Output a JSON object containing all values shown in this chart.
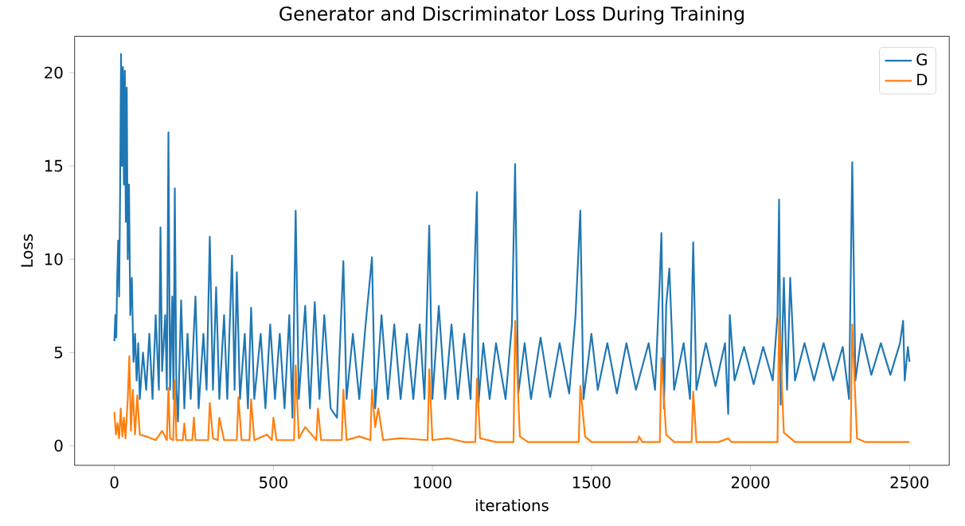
{
  "chart_data": {
    "type": "line",
    "title": "Generator and Discriminator Loss During Training",
    "xlabel": "iterations",
    "ylabel": "Loss",
    "xlim": [
      -125,
      2625
    ],
    "ylim": [
      -1.05,
      21.95
    ],
    "xticks": [
      0,
      500,
      1000,
      1500,
      2000,
      2500
    ],
    "yticks": [
      0,
      5,
      10,
      15,
      20
    ],
    "legend": "top right",
    "grid": false,
    "series": [
      {
        "name": "G",
        "color": "#1f77b4",
        "x": [
          0,
          3,
          6,
          9,
          12,
          15,
          18,
          21,
          24,
          27,
          30,
          33,
          36,
          39,
          42,
          46,
          50,
          55,
          60,
          65,
          70,
          75,
          80,
          90,
          100,
          110,
          120,
          130,
          140,
          145,
          150,
          160,
          165,
          170,
          175,
          182,
          186,
          190,
          195,
          200,
          210,
          220,
          230,
          240,
          255,
          265,
          280,
          290,
          300,
          310,
          320,
          330,
          345,
          355,
          370,
          378,
          385,
          395,
          410,
          420,
          430,
          440,
          460,
          475,
          490,
          505,
          520,
          535,
          550,
          560,
          570,
          580,
          600,
          615,
          630,
          645,
          660,
          680,
          700,
          720,
          730,
          750,
          770,
          790,
          810,
          820,
          840,
          860,
          880,
          900,
          920,
          940,
          960,
          975,
          990,
          1000,
          1020,
          1040,
          1060,
          1080,
          1100,
          1120,
          1140,
          1145,
          1160,
          1180,
          1200,
          1230,
          1250,
          1260,
          1270,
          1290,
          1310,
          1340,
          1370,
          1400,
          1430,
          1450,
          1465,
          1475,
          1500,
          1520,
          1550,
          1580,
          1610,
          1640,
          1680,
          1700,
          1715,
          1720,
          1728,
          1735,
          1745,
          1760,
          1790,
          1810,
          1820,
          1830,
          1860,
          1890,
          1920,
          1930,
          1935,
          1950,
          1980,
          2010,
          2040,
          2070,
          2085,
          2090,
          2095,
          2105,
          2115,
          2125,
          2140,
          2170,
          2200,
          2230,
          2260,
          2290,
          2310,
          2320,
          2330,
          2350,
          2380,
          2410,
          2440,
          2470,
          2480,
          2485,
          2495,
          2500
        ],
        "values": [
          5.6,
          7,
          5.8,
          9,
          11,
          8,
          13.5,
          21,
          15,
          20.3,
          14,
          20.1,
          12,
          19.2,
          10,
          14,
          7,
          9,
          4.5,
          6,
          3.5,
          5.5,
          2.5,
          5,
          3,
          6,
          2.5,
          7,
          3,
          11.7,
          4,
          7,
          3,
          16.8,
          3,
          8,
          2.5,
          13.8,
          3,
          1.3,
          7.8,
          2,
          6,
          2.5,
          8,
          2,
          6,
          3,
          11.2,
          3,
          8.5,
          2.5,
          7,
          2.5,
          10.2,
          3,
          9.3,
          2.5,
          6,
          2,
          7.4,
          2.5,
          6,
          2,
          6.5,
          2.5,
          6,
          2,
          7,
          1.5,
          12.6,
          2.5,
          7.5,
          2,
          7.7,
          2.5,
          7,
          2,
          1.5,
          9.9,
          2.5,
          6,
          2.5,
          6.5,
          10.1,
          2,
          7,
          2.5,
          6.5,
          2.5,
          6,
          2.5,
          6.5,
          2.5,
          11.8,
          2.5,
          7.5,
          2.5,
          6.5,
          2.5,
          6,
          2.5,
          13.6,
          2.3,
          5.5,
          2.5,
          5.5,
          2.5,
          6.5,
          15.1,
          2.8,
          5.5,
          2.5,
          5.8,
          2.6,
          5.5,
          2.8,
          7,
          12.6,
          2.5,
          6,
          3,
          5.5,
          2.8,
          5.5,
          3,
          5.5,
          3,
          9,
          11.4,
          2,
          7.5,
          9.5,
          3,
          5.5,
          2.5,
          10.9,
          3,
          5.5,
          3.2,
          5.5,
          1.7,
          7,
          3.5,
          5.3,
          3.3,
          5.3,
          3.5,
          7,
          13.2,
          2.2,
          9,
          3,
          9,
          3.5,
          5.5,
          3.5,
          5.5,
          3.5,
          5.3,
          2.5,
          15.2,
          3.5,
          6,
          3.8,
          5.5,
          3.8,
          5.5,
          6.7,
          3.5,
          5.3,
          4.5
        ]
      },
      {
        "name": "D",
        "color": "#ff7f0e",
        "x": [
          0,
          5,
          10,
          15,
          20,
          25,
          30,
          35,
          42,
          47,
          52,
          58,
          65,
          72,
          80,
          100,
          130,
          150,
          165,
          170,
          175,
          185,
          190,
          195,
          215,
          220,
          225,
          245,
          250,
          255,
          295,
          300,
          310,
          325,
          330,
          345,
          385,
          390,
          400,
          425,
          430,
          440,
          480,
          495,
          500,
          510,
          565,
          570,
          580,
          600,
          635,
          640,
          650,
          715,
          720,
          730,
          770,
          805,
          810,
          820,
          830,
          845,
          900,
          985,
          990,
          1000,
          1050,
          1100,
          1135,
          1140,
          1150,
          1200,
          1255,
          1260,
          1275,
          1300,
          1400,
          1460,
          1465,
          1480,
          1500,
          1600,
          1645,
          1650,
          1660,
          1715,
          1720,
          1735,
          1760,
          1815,
          1820,
          1830,
          1900,
          1930,
          1940,
          2085,
          2090,
          2105,
          2140,
          2200,
          2315,
          2320,
          2335,
          2360,
          2500
        ],
        "values": [
          1.8,
          0.6,
          1.2,
          0.4,
          2,
          0.5,
          1.5,
          0.4,
          2.5,
          4.8,
          0.8,
          3,
          0.6,
          2.7,
          0.6,
          0.5,
          0.3,
          0.8,
          0.3,
          3.1,
          0.4,
          0.3,
          3.5,
          0.3,
          0.3,
          1.2,
          0.3,
          0.3,
          1.5,
          0.3,
          0.3,
          2.3,
          0.4,
          0.3,
          1.5,
          0.3,
          0.3,
          2.6,
          0.3,
          0.3,
          2.5,
          0.3,
          0.6,
          0.3,
          1.5,
          0.3,
          0.3,
          4.3,
          0.4,
          1,
          0.3,
          2,
          0.3,
          0.3,
          3,
          0.3,
          0.5,
          0.3,
          3,
          1,
          2,
          0.3,
          0.4,
          0.3,
          4.1,
          0.3,
          0.4,
          0.2,
          0.2,
          3.6,
          0.4,
          0.2,
          0.2,
          6.7,
          0.5,
          0.2,
          0.2,
          0.2,
          3.2,
          0.5,
          0.2,
          0.2,
          0.2,
          0.5,
          0.2,
          0.2,
          4.7,
          0.6,
          0.2,
          0.2,
          2.9,
          0.2,
          0.2,
          0.4,
          0.2,
          0.2,
          6.8,
          0.7,
          0.2,
          0.2,
          0.2,
          6.5,
          0.4,
          0.2,
          0.2
        ]
      }
    ]
  }
}
